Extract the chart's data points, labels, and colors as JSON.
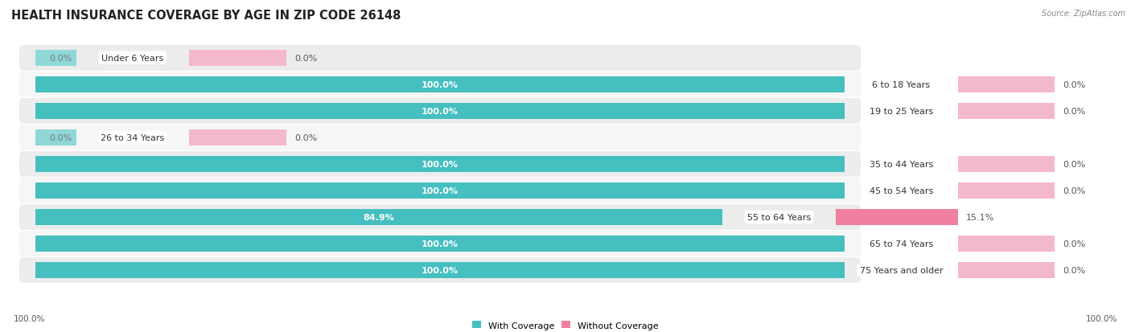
{
  "title": "HEALTH INSURANCE COVERAGE BY AGE IN ZIP CODE 26148",
  "source": "Source: ZipAtlas.com",
  "categories": [
    "Under 6 Years",
    "6 to 18 Years",
    "19 to 25 Years",
    "26 to 34 Years",
    "35 to 44 Years",
    "45 to 54 Years",
    "55 to 64 Years",
    "65 to 74 Years",
    "75 Years and older"
  ],
  "with_coverage": [
    0.0,
    100.0,
    100.0,
    0.0,
    100.0,
    100.0,
    84.9,
    100.0,
    100.0
  ],
  "without_coverage": [
    0.0,
    0.0,
    0.0,
    0.0,
    0.0,
    0.0,
    15.1,
    0.0,
    0.0
  ],
  "color_with": "#45BFBF",
  "color_with_light": "#90D8D8",
  "color_without": "#F080A0",
  "color_without_light": "#F4B8CC",
  "bg_row_even": "#ECECEC",
  "bg_row_odd": "#F6F6F6",
  "bg_chart": "#FFFFFF",
  "title_fontsize": 10.5,
  "label_fontsize": 8,
  "tick_fontsize": 7.5,
  "legend_fontsize": 8,
  "source_fontsize": 7,
  "center_label_color": "#333333",
  "stub_with_pct": 5,
  "stub_without_pct": 12
}
